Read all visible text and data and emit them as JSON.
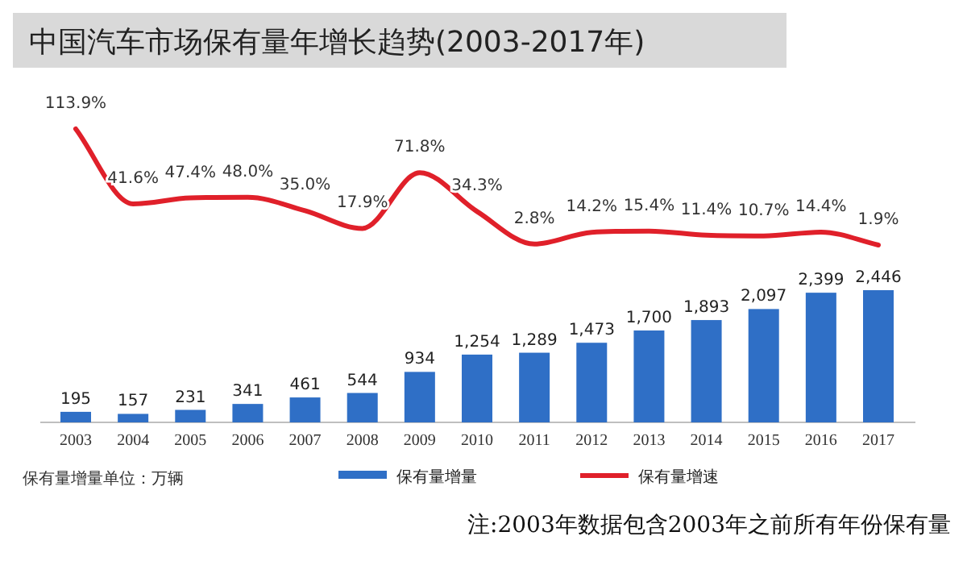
{
  "chart_data": [
    {
      "type": "line",
      "title": "中国汽车市场保有量年增长趋势(2003-2017年)",
      "categories": [
        null,
        null,
        null,
        null,
        null,
        null,
        null,
        null,
        null,
        null,
        null,
        null,
        null,
        null,
        null
      ],
      "series": [
        {
          "name": "保有量增速",
          "color": "#e0202a",
          "values": [
            113.9,
            41.6,
            47.4,
            48.0,
            35.0,
            17.9,
            71.8,
            34.3,
            2.8,
            14.2,
            15.4,
            11.4,
            10.7,
            14.4,
            1.9
          ],
          "value_labels": [
            "113.9%",
            "41.6%",
            "47.4%",
            "48.0%",
            "35.0%",
            "17.9%",
            "71.8%",
            "34.3%",
            "2.8%",
            "14.2%",
            "15.4%",
            "11.4%",
            "10.7%",
            "14.4%",
            "1.9%"
          ]
        }
      ],
      "legend": "bottom",
      "marker": "none"
    },
    {
      "type": "bar",
      "categories": [
        "2003",
        "2004",
        "2005",
        "2006",
        "2007",
        "2008",
        "2009",
        "2010",
        "2011",
        "2012",
        "2013",
        "2014",
        "2015",
        "2016",
        "2017"
      ],
      "series": [
        {
          "name": "保有量增量",
          "color": "#2f6fc6",
          "values": [
            195,
            157,
            231,
            341,
            461,
            544,
            934,
            1254,
            1289,
            1473,
            1700,
            1893,
            2097,
            2399,
            2446
          ],
          "value_labels": [
            "195",
            "157",
            "231",
            "341",
            "461",
            "544",
            "934",
            "1,254",
            "1,289",
            "1,473",
            "1,700",
            "1,893",
            "2,097",
            "2,399",
            "2,446"
          ]
        }
      ],
      "legend": "bottom",
      "annotations": [
        "保有量增量单位：万辆",
        "注:2003年数据包含2003年之前所有年份保有量"
      ]
    }
  ]
}
